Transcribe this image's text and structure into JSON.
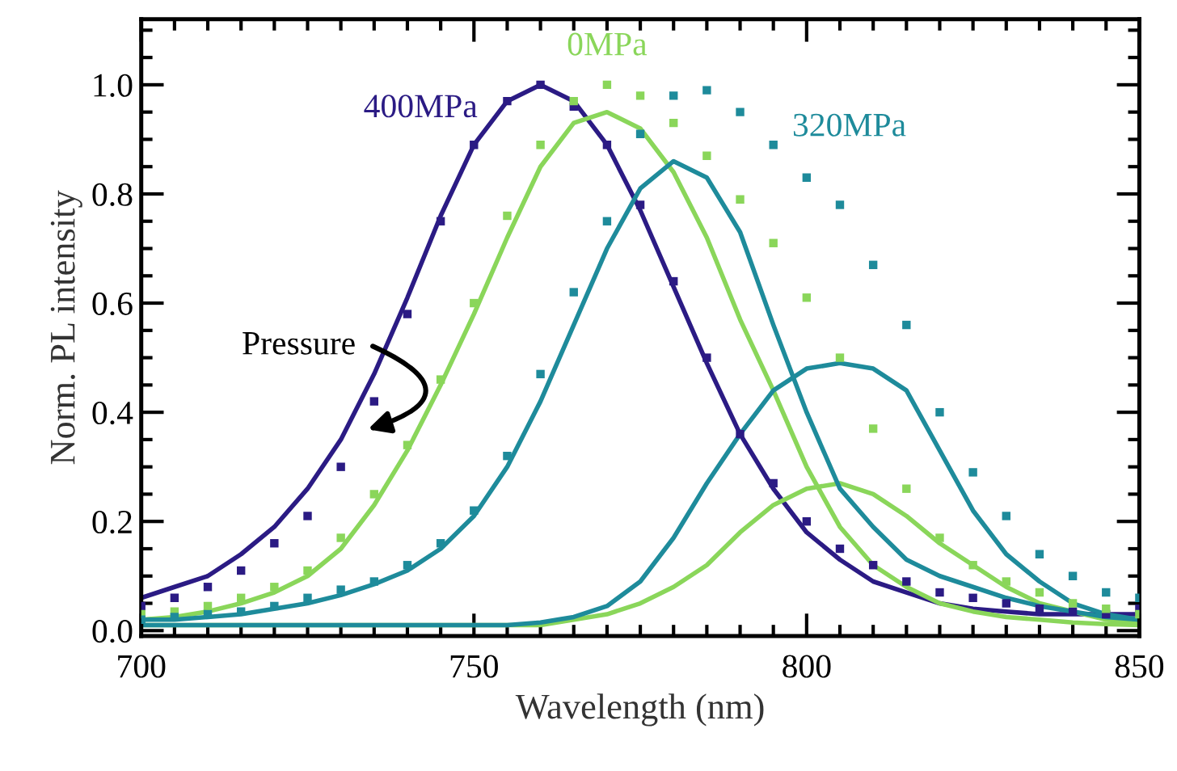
{
  "chart_data": {
    "type": "scatter",
    "xlabel": "Wavelength (nm)",
    "ylabel": "Norm. PL intensity",
    "x": [
      700,
      705,
      710,
      715,
      720,
      725,
      730,
      735,
      740,
      745,
      750,
      755,
      760,
      765,
      770,
      775,
      780,
      785,
      790,
      795,
      800,
      805,
      810,
      815,
      820,
      825,
      830,
      835,
      840,
      845,
      850
    ],
    "series": [
      {
        "name": "400MPa",
        "marker": "square",
        "color": "#2b1b84",
        "values": [
          0.045,
          0.06,
          0.08,
          0.11,
          0.16,
          0.21,
          0.3,
          0.42,
          0.58,
          0.75,
          0.89,
          0.97,
          1.0,
          0.96,
          0.89,
          0.78,
          0.64,
          0.5,
          0.36,
          0.27,
          0.2,
          0.15,
          0.12,
          0.09,
          0.07,
          0.06,
          0.05,
          0.04,
          0.035,
          0.03,
          0.04
        ]
      },
      {
        "name": "0MPa",
        "marker": "square",
        "color": "#8ad65a",
        "values": [
          0.03,
          0.035,
          0.045,
          0.06,
          0.08,
          0.11,
          0.17,
          0.25,
          0.34,
          0.46,
          0.6,
          0.76,
          0.89,
          0.97,
          1.0,
          0.98,
          0.93,
          0.87,
          0.79,
          0.71,
          0.61,
          0.5,
          0.37,
          0.26,
          0.17,
          0.12,
          0.09,
          0.07,
          0.05,
          0.04,
          0.03
        ]
      },
      {
        "name": "320MPa",
        "marker": "square",
        "color": "#1e8b9b",
        "values": [
          0.02,
          0.025,
          0.03,
          0.035,
          0.045,
          0.06,
          0.075,
          0.09,
          0.12,
          0.16,
          0.22,
          0.32,
          0.47,
          0.62,
          0.75,
          0.91,
          0.98,
          0.99,
          0.95,
          0.89,
          0.83,
          0.78,
          0.67,
          0.56,
          0.4,
          0.29,
          0.21,
          0.14,
          0.1,
          0.07,
          0.06
        ]
      },
      {
        "type": "line",
        "color": "#2b1b84",
        "values": [
          0.06,
          0.08,
          0.1,
          0.14,
          0.19,
          0.26,
          0.35,
          0.47,
          0.61,
          0.76,
          0.89,
          0.97,
          1.0,
          0.97,
          0.89,
          0.77,
          0.63,
          0.49,
          0.36,
          0.26,
          0.18,
          0.13,
          0.09,
          0.07,
          0.05,
          0.04,
          0.035,
          0.03,
          0.03,
          0.03,
          0.03
        ]
      },
      {
        "type": "line",
        "color": "#8ad65a",
        "values": [
          0.02,
          0.025,
          0.035,
          0.05,
          0.07,
          0.1,
          0.15,
          0.23,
          0.33,
          0.45,
          0.58,
          0.72,
          0.85,
          0.93,
          0.95,
          0.92,
          0.84,
          0.72,
          0.57,
          0.44,
          0.3,
          0.19,
          0.12,
          0.08,
          0.05,
          0.035,
          0.025,
          0.02,
          0.015,
          0.012,
          0.01
        ]
      },
      {
        "type": "line",
        "color": "#8ad65a",
        "values": [
          0.01,
          0.01,
          0.01,
          0.01,
          0.01,
          0.01,
          0.01,
          0.01,
          0.01,
          0.01,
          0.01,
          0.01,
          0.01,
          0.02,
          0.03,
          0.05,
          0.08,
          0.12,
          0.18,
          0.23,
          0.26,
          0.27,
          0.25,
          0.21,
          0.16,
          0.12,
          0.08,
          0.05,
          0.035,
          0.02,
          0.015
        ]
      },
      {
        "type": "line",
        "color": "#1e8b9b",
        "values": [
          0.02,
          0.02,
          0.025,
          0.03,
          0.04,
          0.05,
          0.065,
          0.085,
          0.11,
          0.15,
          0.21,
          0.3,
          0.42,
          0.56,
          0.7,
          0.81,
          0.86,
          0.83,
          0.73,
          0.56,
          0.4,
          0.26,
          0.19,
          0.13,
          0.1,
          0.08,
          0.06,
          0.045,
          0.035,
          0.025,
          0.02
        ]
      },
      {
        "type": "line",
        "color": "#1e8b9b",
        "values": [
          0.01,
          0.01,
          0.01,
          0.01,
          0.01,
          0.01,
          0.01,
          0.01,
          0.01,
          0.01,
          0.01,
          0.01,
          0.015,
          0.025,
          0.045,
          0.09,
          0.17,
          0.27,
          0.36,
          0.44,
          0.48,
          0.49,
          0.48,
          0.44,
          0.33,
          0.22,
          0.14,
          0.09,
          0.05,
          0.03,
          0.02
        ]
      }
    ],
    "annotations": [
      "Pressure"
    ],
    "xlim": [
      700,
      850
    ],
    "xticks": [
      700,
      750,
      800,
      850
    ],
    "ylim": [
      -0.01,
      1.12
    ],
    "yticks": [
      {
        "value": 0,
        "label": "0.0"
      },
      {
        "value": 0.2,
        "label": "0.2"
      },
      {
        "value": 0.4,
        "label": "0.4"
      },
      {
        "value": 0.6,
        "label": "0.6"
      },
      {
        "value": 0.8,
        "label": "0.8"
      },
      {
        "value": 1.0,
        "label": "1.0"
      }
    ]
  }
}
